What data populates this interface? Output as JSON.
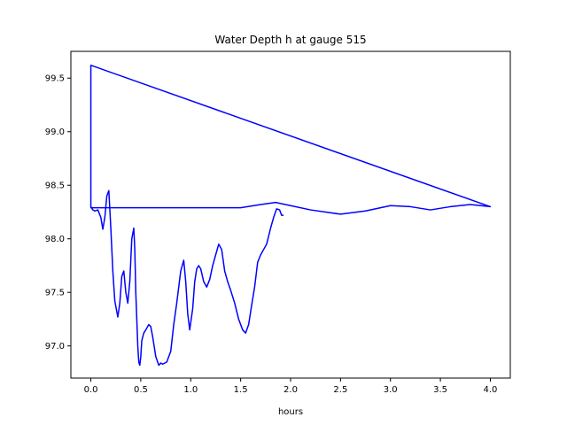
{
  "chart_data": {
    "type": "line",
    "title": "Water Depth h at gauge 515",
    "xlabel": "hours",
    "ylabel": "",
    "xlim": [
      -0.2,
      4.2
    ],
    "ylim": [
      96.7,
      99.75
    ],
    "grid": false,
    "x_ticks": [
      0.0,
      0.5,
      1.0,
      1.5,
      2.0,
      2.5,
      3.0,
      3.5,
      4.0
    ],
    "x_tick_labels": [
      "0.0",
      "0.5",
      "1.0",
      "1.5",
      "2.0",
      "2.5",
      "3.0",
      "3.5",
      "4.0"
    ],
    "y_ticks": [
      97.0,
      97.5,
      98.0,
      98.5,
      99.0,
      99.5
    ],
    "y_tick_labels": [
      "97.0",
      "97.5",
      "98.0",
      "98.5",
      "99.0",
      "99.5"
    ],
    "series": [
      {
        "color": "#0000ff",
        "x": [
          0.0,
          0.0,
          0.0,
          0.0,
          1.5,
          1.7,
          1.85,
          2.0,
          2.2,
          2.5,
          2.75,
          3.0,
          3.2,
          3.4,
          3.6,
          3.8,
          4.0,
          0.0,
          0.0,
          0.02,
          0.04,
          0.07,
          0.1,
          0.12,
          0.14,
          0.16,
          0.18,
          0.2,
          0.22,
          0.24,
          0.27,
          0.29,
          0.31,
          0.33,
          0.35,
          0.37,
          0.39,
          0.41,
          0.43,
          0.44,
          0.45,
          0.47,
          0.48,
          0.49,
          0.5,
          0.51,
          0.53,
          0.55,
          0.58,
          0.6,
          0.62,
          0.65,
          0.68,
          0.7,
          0.72,
          0.76,
          0.8,
          0.83,
          0.86,
          0.9,
          0.93,
          0.95,
          0.97,
          0.99,
          1.02,
          1.04,
          1.06,
          1.08,
          1.1,
          1.13,
          1.16,
          1.19,
          1.22,
          1.25,
          1.28,
          1.31,
          1.34,
          1.37,
          1.4,
          1.44,
          1.48,
          1.52,
          1.55,
          1.58,
          1.61,
          1.64,
          1.67,
          1.7,
          1.73,
          1.76,
          1.8,
          1.83,
          1.86,
          1.89,
          1.91,
          1.93
        ],
        "y": [
          98.29,
          99.62,
          99.62,
          98.29,
          98.29,
          98.32,
          98.34,
          98.31,
          98.27,
          98.23,
          98.26,
          98.31,
          98.3,
          98.27,
          98.3,
          98.32,
          98.3,
          99.62,
          98.3,
          98.27,
          98.26,
          98.27,
          98.2,
          98.09,
          98.2,
          98.4,
          98.45,
          98.1,
          97.7,
          97.42,
          97.27,
          97.4,
          97.65,
          97.7,
          97.5,
          97.4,
          97.6,
          98.0,
          98.1,
          97.9,
          97.5,
          97.0,
          96.85,
          96.82,
          96.9,
          97.05,
          97.12,
          97.15,
          97.2,
          97.18,
          97.08,
          96.9,
          96.82,
          96.84,
          96.83,
          96.85,
          96.95,
          97.2,
          97.4,
          97.7,
          97.8,
          97.6,
          97.3,
          97.15,
          97.35,
          97.6,
          97.72,
          97.75,
          97.72,
          97.6,
          97.55,
          97.62,
          97.75,
          97.85,
          97.95,
          97.9,
          97.7,
          97.6,
          97.52,
          97.4,
          97.25,
          97.15,
          97.12,
          97.2,
          97.38,
          97.55,
          97.78,
          97.85,
          97.9,
          97.95,
          98.1,
          98.2,
          98.28,
          98.27,
          98.22,
          98.22
        ]
      }
    ]
  }
}
